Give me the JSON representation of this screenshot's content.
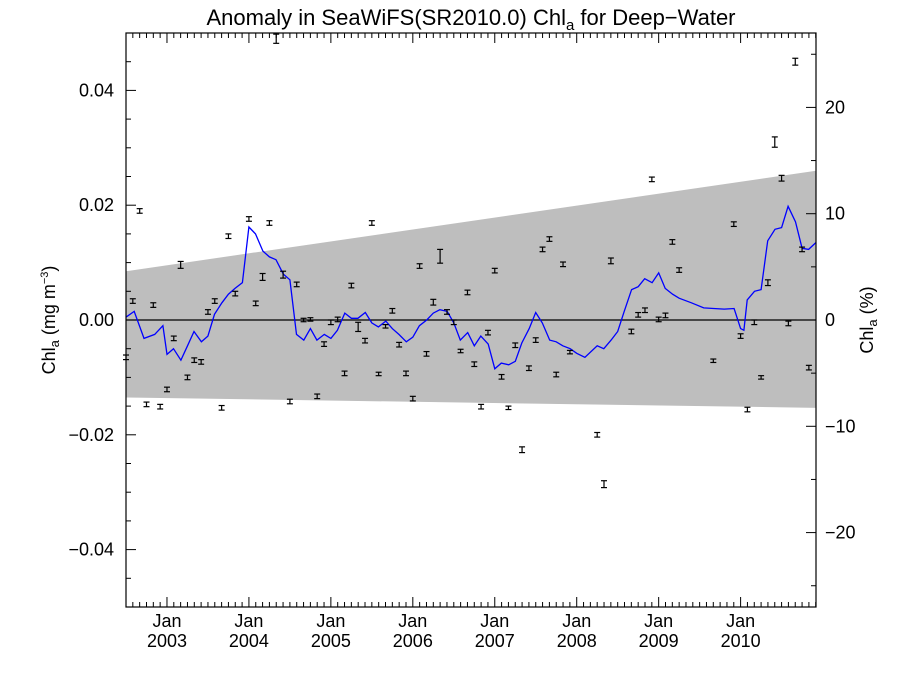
{
  "chart_data": {
    "type": "scatter",
    "title": {
      "main": "Anomaly in SeaWiFS(SR2010.0) Chl",
      "sub": "a",
      "tail": " for Deep−Water"
    },
    "ylabel_left": {
      "main": "Chl",
      "sub": "a",
      "tail": " (mg m",
      "sup": "−3",
      "end": ")"
    },
    "ylabel_right": {
      "main": "Chl",
      "sub": "a",
      "tail": " (%)"
    },
    "xlim": [
      2002.5,
      2010.92
    ],
    "ylim": [
      -0.05,
      0.05
    ],
    "ylim_right": [
      -27,
      27
    ],
    "x_ticks": [
      {
        "x": 2003.0,
        "month": "Jan",
        "year": "2003"
      },
      {
        "x": 2004.0,
        "month": "Jan",
        "year": "2004"
      },
      {
        "x": 2005.0,
        "month": "Jan",
        "year": "2005"
      },
      {
        "x": 2006.0,
        "month": "Jan",
        "year": "2006"
      },
      {
        "x": 2007.0,
        "month": "Jan",
        "year": "2007"
      },
      {
        "x": 2008.0,
        "month": "Jan",
        "year": "2008"
      },
      {
        "x": 2009.0,
        "month": "Jan",
        "year": "2009"
      },
      {
        "x": 2010.0,
        "month": "Jan",
        "year": "2010"
      }
    ],
    "y_ticks_left": [
      {
        "v": 0.04,
        "label": "0.04"
      },
      {
        "v": 0.02,
        "label": "0.02"
      },
      {
        "v": 0.0,
        "label": "0.00"
      },
      {
        "v": -0.02,
        "label": "−0.02"
      },
      {
        "v": -0.04,
        "label": "−0.04"
      }
    ],
    "y_ticks_right": [
      {
        "v": 20,
        "label": "20"
      },
      {
        "v": 10,
        "label": "10"
      },
      {
        "v": 0,
        "label": "0"
      },
      {
        "v": -10,
        "label": "−10"
      },
      {
        "v": -20,
        "label": "−20"
      }
    ],
    "band": {
      "x": [
        2002.5,
        2010.92
      ],
      "upper": [
        0.0085,
        0.026
      ],
      "lower": [
        -0.0135,
        -0.0153
      ]
    },
    "zero_line": 0,
    "colors": {
      "band": "#bebebe",
      "line": "#0000ff",
      "points": "#000000",
      "zero": "#000000"
    },
    "points": [
      {
        "x": 2002.5,
        "y": -0.0065,
        "err": 0.0004
      },
      {
        "x": 2002.583,
        "y": 0.0033,
        "err": 0.0004
      },
      {
        "x": 2002.667,
        "y": 0.019,
        "err": 0.0004
      },
      {
        "x": 2002.75,
        "y": -0.0147,
        "err": 0.0004
      },
      {
        "x": 2002.833,
        "y": 0.0026,
        "err": 0.0004
      },
      {
        "x": 2002.917,
        "y": -0.0151,
        "err": 0.0004
      },
      {
        "x": 2003.0,
        "y": -0.0121,
        "err": 0.0004
      },
      {
        "x": 2003.083,
        "y": -0.0032,
        "err": 0.0004
      },
      {
        "x": 2003.167,
        "y": 0.0096,
        "err": 0.0006
      },
      {
        "x": 2003.25,
        "y": -0.01,
        "err": 0.0004
      },
      {
        "x": 2003.333,
        "y": -0.007,
        "err": 0.0004
      },
      {
        "x": 2003.417,
        "y": -0.0073,
        "err": 0.0004
      },
      {
        "x": 2003.5,
        "y": 0.0014,
        "err": 0.0004
      },
      {
        "x": 2003.583,
        "y": 0.0033,
        "err": 0.0004
      },
      {
        "x": 2003.667,
        "y": -0.0153,
        "err": 0.0004
      },
      {
        "x": 2003.75,
        "y": 0.0146,
        "err": 0.0004
      },
      {
        "x": 2003.833,
        "y": 0.0046,
        "err": 0.0004
      },
      {
        "x": 2004.0,
        "y": 0.0176,
        "err": 0.0004
      },
      {
        "x": 2004.083,
        "y": 0.0029,
        "err": 0.0004
      },
      {
        "x": 2004.167,
        "y": 0.0075,
        "err": 0.0006
      },
      {
        "x": 2004.25,
        "y": 0.0169,
        "err": 0.0004
      },
      {
        "x": 2004.333,
        "y": 0.049,
        "err": 0.0008
      },
      {
        "x": 2004.417,
        "y": 0.0079,
        "err": 0.0006
      },
      {
        "x": 2004.5,
        "y": -0.0142,
        "err": 0.0004
      },
      {
        "x": 2004.583,
        "y": 0.0062,
        "err": 0.0004
      },
      {
        "x": 2004.667,
        "y": 0.0,
        "err": 0.0003
      },
      {
        "x": 2004.75,
        "y": 0.0001,
        "err": 0.0003
      },
      {
        "x": 2004.833,
        "y": -0.0133,
        "err": 0.0004
      },
      {
        "x": 2004.917,
        "y": -0.0042,
        "err": 0.0004
      },
      {
        "x": 2005.0,
        "y": -0.0004,
        "err": 0.0004
      },
      {
        "x": 2005.083,
        "y": 0.0001,
        "err": 0.0004
      },
      {
        "x": 2005.167,
        "y": -0.0093,
        "err": 0.0004
      },
      {
        "x": 2005.25,
        "y": 0.006,
        "err": 0.0004
      },
      {
        "x": 2005.333,
        "y": -0.0012,
        "err": 0.0008
      },
      {
        "x": 2005.417,
        "y": -0.0036,
        "err": 0.0004
      },
      {
        "x": 2005.5,
        "y": 0.0169,
        "err": 0.0004
      },
      {
        "x": 2005.583,
        "y": -0.0094,
        "err": 0.0003
      },
      {
        "x": 2005.667,
        "y": -0.0011,
        "err": 0.0003
      },
      {
        "x": 2005.75,
        "y": 0.0016,
        "err": 0.0004
      },
      {
        "x": 2005.833,
        "y": -0.0043,
        "err": 0.0004
      },
      {
        "x": 2005.917,
        "y": -0.0093,
        "err": 0.0004
      },
      {
        "x": 2006.0,
        "y": -0.0137,
        "err": 0.0004
      },
      {
        "x": 2006.083,
        "y": 0.0094,
        "err": 0.0004
      },
      {
        "x": 2006.167,
        "y": -0.0059,
        "err": 0.0004
      },
      {
        "x": 2006.25,
        "y": 0.0031,
        "err": 0.0005
      },
      {
        "x": 2006.333,
        "y": 0.0111,
        "err": 0.0012
      },
      {
        "x": 2006.417,
        "y": 0.0014,
        "err": 0.0004
      },
      {
        "x": 2006.5,
        "y": -0.0004,
        "err": 0.0004
      },
      {
        "x": 2006.583,
        "y": -0.0054,
        "err": 0.0003
      },
      {
        "x": 2006.667,
        "y": 0.0048,
        "err": 0.0004
      },
      {
        "x": 2006.75,
        "y": -0.0077,
        "err": 0.0004
      },
      {
        "x": 2006.833,
        "y": -0.0151,
        "err": 0.0004
      },
      {
        "x": 2006.917,
        "y": -0.0022,
        "err": 0.0004
      },
      {
        "x": 2007.0,
        "y": 0.0086,
        "err": 0.0004
      },
      {
        "x": 2007.083,
        "y": -0.0099,
        "err": 0.0004
      },
      {
        "x": 2007.167,
        "y": -0.0153,
        "err": 0.0003
      },
      {
        "x": 2007.25,
        "y": -0.0044,
        "err": 0.0004
      },
      {
        "x": 2007.333,
        "y": -0.0226,
        "err": 0.0005
      },
      {
        "x": 2007.417,
        "y": -0.0084,
        "err": 0.0004
      },
      {
        "x": 2007.5,
        "y": -0.0035,
        "err": 0.0004
      },
      {
        "x": 2007.583,
        "y": 0.0123,
        "err": 0.0004
      },
      {
        "x": 2007.667,
        "y": 0.0141,
        "err": 0.0004
      },
      {
        "x": 2007.75,
        "y": -0.0095,
        "err": 0.0004
      },
      {
        "x": 2007.833,
        "y": 0.0097,
        "err": 0.0004
      },
      {
        "x": 2007.917,
        "y": -0.0056,
        "err": 0.0003
      },
      {
        "x": 2008.25,
        "y": -0.02,
        "err": 0.0004
      },
      {
        "x": 2008.333,
        "y": -0.0286,
        "err": 0.0006
      },
      {
        "x": 2008.417,
        "y": 0.0103,
        "err": 0.0005
      },
      {
        "x": 2008.667,
        "y": -0.002,
        "err": 0.0004
      },
      {
        "x": 2008.75,
        "y": 0.0009,
        "err": 0.0004
      },
      {
        "x": 2008.833,
        "y": 0.0017,
        "err": 0.0004
      },
      {
        "x": 2008.917,
        "y": 0.0245,
        "err": 0.0004
      },
      {
        "x": 2009.0,
        "y": 0.0001,
        "err": 0.0004
      },
      {
        "x": 2009.083,
        "y": 0.0008,
        "err": 0.0004
      },
      {
        "x": 2009.167,
        "y": 0.0136,
        "err": 0.0004
      },
      {
        "x": 2009.25,
        "y": 0.0087,
        "err": 0.0004
      },
      {
        "x": 2009.667,
        "y": -0.0071,
        "err": 0.0003
      },
      {
        "x": 2009.917,
        "y": 0.0167,
        "err": 0.0004
      },
      {
        "x": 2010.0,
        "y": -0.0028,
        "err": 0.0004
      },
      {
        "x": 2010.083,
        "y": -0.0156,
        "err": 0.0004
      },
      {
        "x": 2010.167,
        "y": -0.0004,
        "err": 0.0004
      },
      {
        "x": 2010.25,
        "y": -0.01,
        "err": 0.0003
      },
      {
        "x": 2010.333,
        "y": 0.0065,
        "err": 0.0005
      },
      {
        "x": 2010.417,
        "y": 0.031,
        "err": 0.0009
      },
      {
        "x": 2010.5,
        "y": 0.0247,
        "err": 0.0005
      },
      {
        "x": 2010.583,
        "y": -0.0006,
        "err": 0.0004
      },
      {
        "x": 2010.667,
        "y": 0.045,
        "err": 0.0006
      },
      {
        "x": 2010.75,
        "y": 0.0123,
        "err": 0.0004
      },
      {
        "x": 2010.833,
        "y": -0.0083,
        "err": 0.0004
      }
    ],
    "smooth_line": {
      "x": [
        2002.5,
        2002.6,
        2002.72,
        2002.85,
        2002.95,
        2003.0,
        2003.08,
        2003.17,
        2003.25,
        2003.33,
        2003.42,
        2003.5,
        2003.58,
        2003.67,
        2003.75,
        2003.83,
        2003.92,
        2004.0,
        2004.08,
        2004.17,
        2004.25,
        2004.33,
        2004.42,
        2004.5,
        2004.58,
        2004.67,
        2004.75,
        2004.83,
        2004.92,
        2005.0,
        2005.08,
        2005.17,
        2005.25,
        2005.33,
        2005.42,
        2005.5,
        2005.58,
        2005.67,
        2005.75,
        2005.83,
        2005.92,
        2006.0,
        2006.08,
        2006.17,
        2006.25,
        2006.33,
        2006.42,
        2006.5,
        2006.58,
        2006.67,
        2006.75,
        2006.83,
        2006.92,
        2007.0,
        2007.08,
        2007.17,
        2007.25,
        2007.33,
        2007.42,
        2007.5,
        2007.58,
        2007.67,
        2007.75,
        2007.83,
        2007.92,
        2008.0,
        2008.1,
        2008.25,
        2008.33,
        2008.42,
        2008.5,
        2008.58,
        2008.67,
        2008.75,
        2008.83,
        2008.92,
        2009.0,
        2009.08,
        2009.17,
        2009.25,
        2009.4,
        2009.55,
        2009.67,
        2009.8,
        2009.92,
        2010.0,
        2010.04,
        2010.08,
        2010.17,
        2010.25,
        2010.33,
        2010.42,
        2010.5,
        2010.58,
        2010.67,
        2010.75,
        2010.83,
        2010.92
      ],
      "y": [
        0.0005,
        0.0015,
        -0.0032,
        -0.0025,
        -0.001,
        -0.006,
        -0.005,
        -0.007,
        -0.0045,
        -0.002,
        -0.0038,
        -0.0028,
        0.001,
        0.003,
        0.0045,
        0.0055,
        0.0065,
        0.0162,
        0.015,
        0.012,
        0.011,
        0.0105,
        0.008,
        0.007,
        -0.0025,
        -0.0035,
        -0.0015,
        -0.0035,
        -0.0025,
        -0.0032,
        -0.0018,
        0.0012,
        0.0003,
        0.0003,
        0.0013,
        -0.0005,
        -0.0012,
        -0.0002,
        -0.0015,
        -0.0025,
        -0.0038,
        -0.003,
        -0.001,
        0.0,
        0.0012,
        0.0018,
        0.0015,
        -0.0005,
        -0.0035,
        -0.0022,
        -0.0045,
        -0.0028,
        -0.0042,
        -0.0085,
        -0.0075,
        -0.0078,
        -0.0072,
        -0.004,
        -0.0015,
        0.0013,
        -0.0005,
        -0.0035,
        -0.0038,
        -0.0045,
        -0.005,
        -0.0058,
        -0.0065,
        -0.0045,
        -0.005,
        -0.0035,
        -0.002,
        0.0015,
        0.0053,
        0.0058,
        0.0072,
        0.0065,
        0.0082,
        0.0055,
        0.0045,
        0.0038,
        0.003,
        0.0021,
        0.002,
        0.0019,
        0.002,
        -0.0015,
        -0.0018,
        0.0035,
        0.005,
        0.0053,
        0.0138,
        0.0158,
        0.0161,
        0.0198,
        0.0171,
        0.0125,
        0.0123,
        0.0135
      ]
    }
  }
}
